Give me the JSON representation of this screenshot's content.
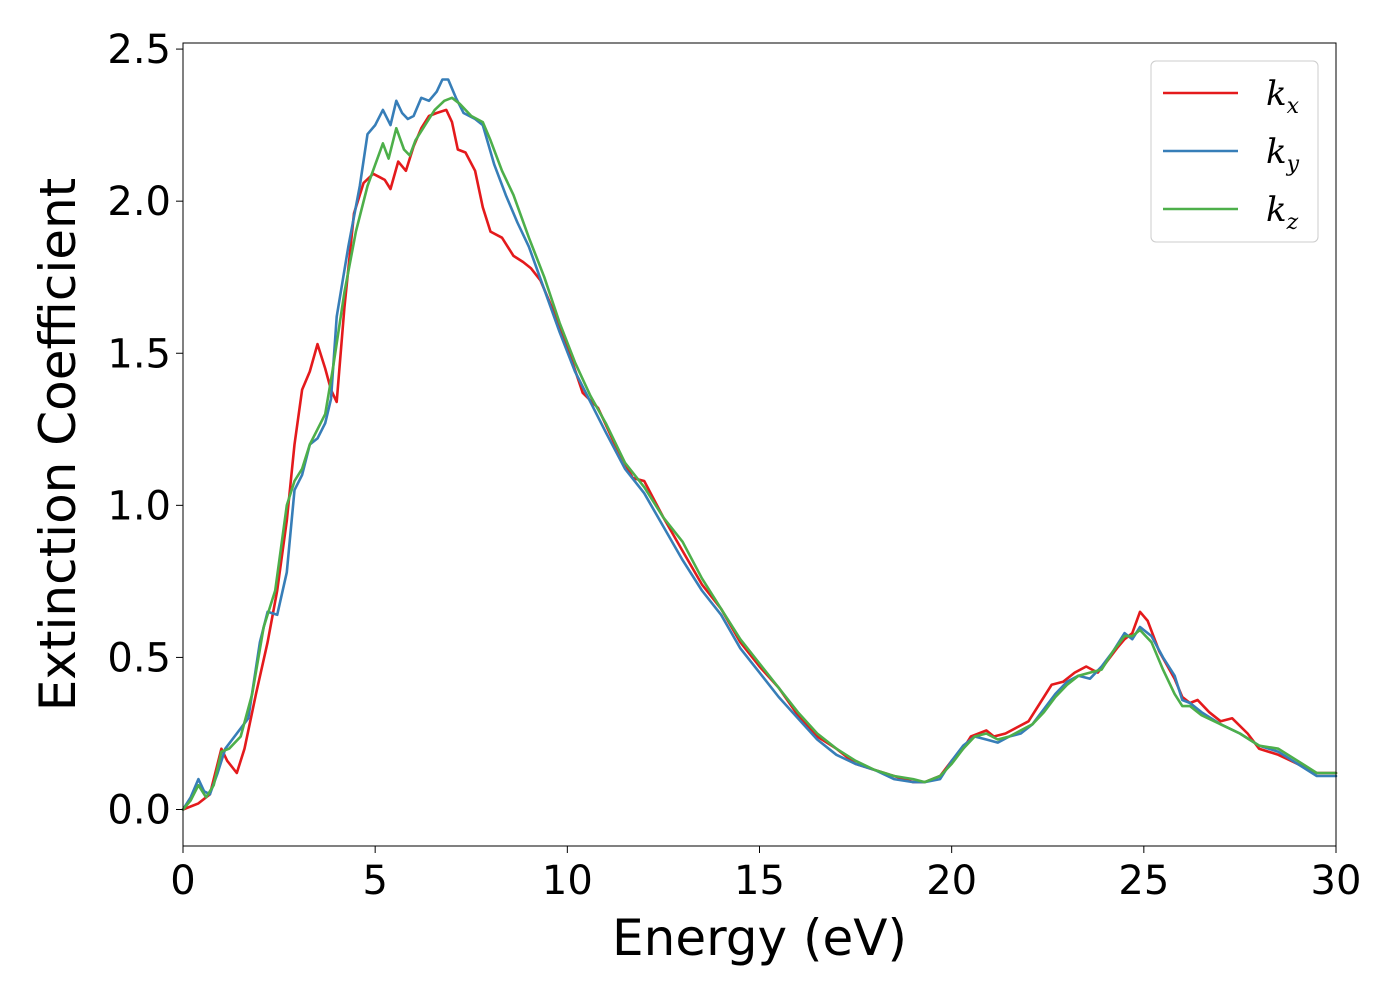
{
  "chart_data": {
    "type": "line",
    "xlabel": "Energy (eV)",
    "ylabel": "Extinction Coefficient",
    "xlim": [
      0,
      30
    ],
    "ylim": [
      -0.12,
      2.52
    ],
    "xticks": [
      "0",
      "5",
      "10",
      "15",
      "20",
      "25",
      "30"
    ],
    "yticks": [
      "0.0",
      "0.5",
      "1.0",
      "1.5",
      "2.0",
      "2.5"
    ],
    "grid": false,
    "legend_position": "top-right",
    "series": [
      {
        "name": "k_x",
        "label_main": "k",
        "label_sub": "x",
        "color": "#e41a1c",
        "x": [
          0,
          0.4,
          0.7,
          1.0,
          1.15,
          1.4,
          1.6,
          1.9,
          2.2,
          2.45,
          2.7,
          2.9,
          3.1,
          3.3,
          3.5,
          3.7,
          3.85,
          4.0,
          4.2,
          4.45,
          4.7,
          4.95,
          5.1,
          5.25,
          5.4,
          5.6,
          5.8,
          6.0,
          6.2,
          6.4,
          6.6,
          6.85,
          7.0,
          7.15,
          7.35,
          7.6,
          7.8,
          8.0,
          8.3,
          8.6,
          8.85,
          9.05,
          9.3,
          9.6,
          10.0,
          10.4,
          10.8,
          11.2,
          11.7,
          12.0,
          12.5,
          13.0,
          13.5,
          14.0,
          14.5,
          15.0,
          15.5,
          16.0,
          16.5,
          17.0,
          17.5,
          18.0,
          18.5,
          19.0,
          19.3,
          19.7,
          20.0,
          20.3,
          20.5,
          20.7,
          20.9,
          21.1,
          21.4,
          21.7,
          22.0,
          22.3,
          22.6,
          22.9,
          23.2,
          23.5,
          23.8,
          24.0,
          24.3,
          24.5,
          24.7,
          24.9,
          25.1,
          25.4,
          25.8,
          26.0,
          26.2,
          26.4,
          26.7,
          27.0,
          27.3,
          27.7,
          28.0,
          28.5,
          29.0,
          29.5,
          30.0
        ],
        "y": [
          0.0,
          0.02,
          0.05,
          0.2,
          0.16,
          0.12,
          0.2,
          0.38,
          0.55,
          0.72,
          0.95,
          1.2,
          1.38,
          1.44,
          1.53,
          1.45,
          1.38,
          1.34,
          1.65,
          1.96,
          2.06,
          2.09,
          2.08,
          2.07,
          2.04,
          2.13,
          2.1,
          2.18,
          2.24,
          2.28,
          2.29,
          2.3,
          2.26,
          2.17,
          2.16,
          2.1,
          1.98,
          1.9,
          1.88,
          1.82,
          1.8,
          1.78,
          1.74,
          1.65,
          1.52,
          1.37,
          1.32,
          1.21,
          1.09,
          1.08,
          0.96,
          0.85,
          0.74,
          0.66,
          0.55,
          0.47,
          0.4,
          0.31,
          0.24,
          0.2,
          0.15,
          0.13,
          0.11,
          0.09,
          0.09,
          0.11,
          0.16,
          0.2,
          0.24,
          0.25,
          0.26,
          0.24,
          0.25,
          0.27,
          0.29,
          0.35,
          0.41,
          0.42,
          0.45,
          0.47,
          0.45,
          0.48,
          0.53,
          0.56,
          0.58,
          0.65,
          0.62,
          0.52,
          0.43,
          0.37,
          0.35,
          0.36,
          0.32,
          0.29,
          0.3,
          0.25,
          0.2,
          0.18,
          0.15,
          0.12,
          0.12
        ]
      },
      {
        "name": "k_y",
        "label_main": "k",
        "label_sub": "y",
        "color": "#377eb8",
        "x": [
          0,
          0.2,
          0.4,
          0.55,
          0.7,
          0.9,
          1.1,
          1.4,
          1.7,
          2.0,
          2.2,
          2.45,
          2.7,
          2.9,
          3.1,
          3.3,
          3.5,
          3.7,
          3.85,
          4.0,
          4.3,
          4.6,
          4.8,
          5.0,
          5.2,
          5.4,
          5.55,
          5.7,
          5.85,
          6.0,
          6.2,
          6.4,
          6.6,
          6.75,
          6.9,
          7.1,
          7.3,
          7.6,
          7.8,
          8.1,
          8.4,
          8.7,
          9.0,
          9.4,
          9.8,
          10.2,
          10.6,
          11.0,
          11.5,
          12.0,
          12.5,
          13.0,
          13.5,
          14.0,
          14.5,
          15.0,
          15.5,
          16.0,
          16.5,
          17.0,
          17.5,
          18.0,
          18.5,
          19.0,
          19.3,
          19.7,
          20.0,
          20.3,
          20.6,
          20.9,
          21.2,
          21.5,
          21.8,
          22.1,
          22.4,
          22.7,
          23.0,
          23.3,
          23.6,
          23.9,
          24.2,
          24.5,
          24.7,
          24.9,
          25.2,
          25.5,
          25.8,
          26.0,
          26.2,
          26.5,
          27.0,
          27.5,
          28.0,
          28.5,
          29.0,
          29.5,
          30.0
        ],
        "y": [
          0.0,
          0.04,
          0.1,
          0.06,
          0.05,
          0.12,
          0.2,
          0.25,
          0.3,
          0.55,
          0.65,
          0.64,
          0.78,
          1.05,
          1.1,
          1.2,
          1.22,
          1.27,
          1.35,
          1.62,
          1.85,
          2.05,
          2.22,
          2.25,
          2.3,
          2.25,
          2.33,
          2.29,
          2.27,
          2.28,
          2.34,
          2.33,
          2.36,
          2.4,
          2.4,
          2.34,
          2.29,
          2.27,
          2.25,
          2.12,
          2.02,
          1.93,
          1.85,
          1.71,
          1.57,
          1.44,
          1.34,
          1.24,
          1.12,
          1.04,
          0.93,
          0.82,
          0.72,
          0.64,
          0.53,
          0.45,
          0.37,
          0.3,
          0.23,
          0.18,
          0.15,
          0.13,
          0.1,
          0.09,
          0.09,
          0.1,
          0.16,
          0.21,
          0.24,
          0.23,
          0.22,
          0.24,
          0.25,
          0.28,
          0.33,
          0.38,
          0.42,
          0.44,
          0.43,
          0.47,
          0.52,
          0.58,
          0.56,
          0.6,
          0.57,
          0.5,
          0.44,
          0.36,
          0.35,
          0.32,
          0.28,
          0.25,
          0.21,
          0.19,
          0.15,
          0.11,
          0.11
        ]
      },
      {
        "name": "k_z",
        "label_main": "k",
        "label_sub": "z",
        "color": "#4daf4a",
        "x": [
          0,
          0.2,
          0.4,
          0.6,
          0.8,
          1.0,
          1.2,
          1.5,
          1.8,
          2.1,
          2.4,
          2.7,
          2.9,
          3.1,
          3.3,
          3.5,
          3.7,
          3.9,
          4.2,
          4.5,
          4.8,
          5.0,
          5.2,
          5.35,
          5.55,
          5.75,
          5.9,
          6.05,
          6.3,
          6.55,
          6.8,
          7.0,
          7.2,
          7.5,
          7.8,
          8.0,
          8.3,
          8.6,
          9.0,
          9.4,
          9.8,
          10.2,
          10.6,
          11.0,
          11.5,
          12.0,
          12.5,
          13.0,
          13.5,
          14.0,
          14.5,
          15.0,
          15.5,
          16.0,
          16.5,
          17.0,
          17.5,
          18.0,
          18.5,
          19.0,
          19.3,
          19.7,
          20.0,
          20.3,
          20.6,
          20.9,
          21.2,
          21.5,
          21.8,
          22.1,
          22.4,
          22.7,
          23.0,
          23.3,
          23.6,
          23.9,
          24.2,
          24.5,
          24.7,
          24.9,
          25.2,
          25.5,
          25.8,
          26.0,
          26.2,
          26.5,
          27.0,
          27.5,
          28.0,
          28.5,
          29.0,
          29.5,
          30.0
        ],
        "y": [
          0.0,
          0.03,
          0.08,
          0.04,
          0.08,
          0.19,
          0.2,
          0.24,
          0.38,
          0.6,
          0.72,
          1.0,
          1.08,
          1.12,
          1.2,
          1.25,
          1.3,
          1.45,
          1.7,
          1.9,
          2.05,
          2.12,
          2.19,
          2.14,
          2.24,
          2.17,
          2.15,
          2.2,
          2.25,
          2.3,
          2.33,
          2.34,
          2.32,
          2.28,
          2.26,
          2.2,
          2.1,
          2.02,
          1.88,
          1.75,
          1.6,
          1.47,
          1.36,
          1.27,
          1.14,
          1.06,
          0.96,
          0.88,
          0.76,
          0.66,
          0.56,
          0.48,
          0.4,
          0.32,
          0.25,
          0.2,
          0.16,
          0.13,
          0.11,
          0.1,
          0.09,
          0.11,
          0.15,
          0.2,
          0.24,
          0.25,
          0.23,
          0.24,
          0.26,
          0.28,
          0.32,
          0.37,
          0.41,
          0.44,
          0.45,
          0.46,
          0.52,
          0.57,
          0.57,
          0.59,
          0.55,
          0.46,
          0.38,
          0.34,
          0.34,
          0.31,
          0.28,
          0.25,
          0.21,
          0.2,
          0.16,
          0.12,
          0.12
        ]
      }
    ]
  }
}
